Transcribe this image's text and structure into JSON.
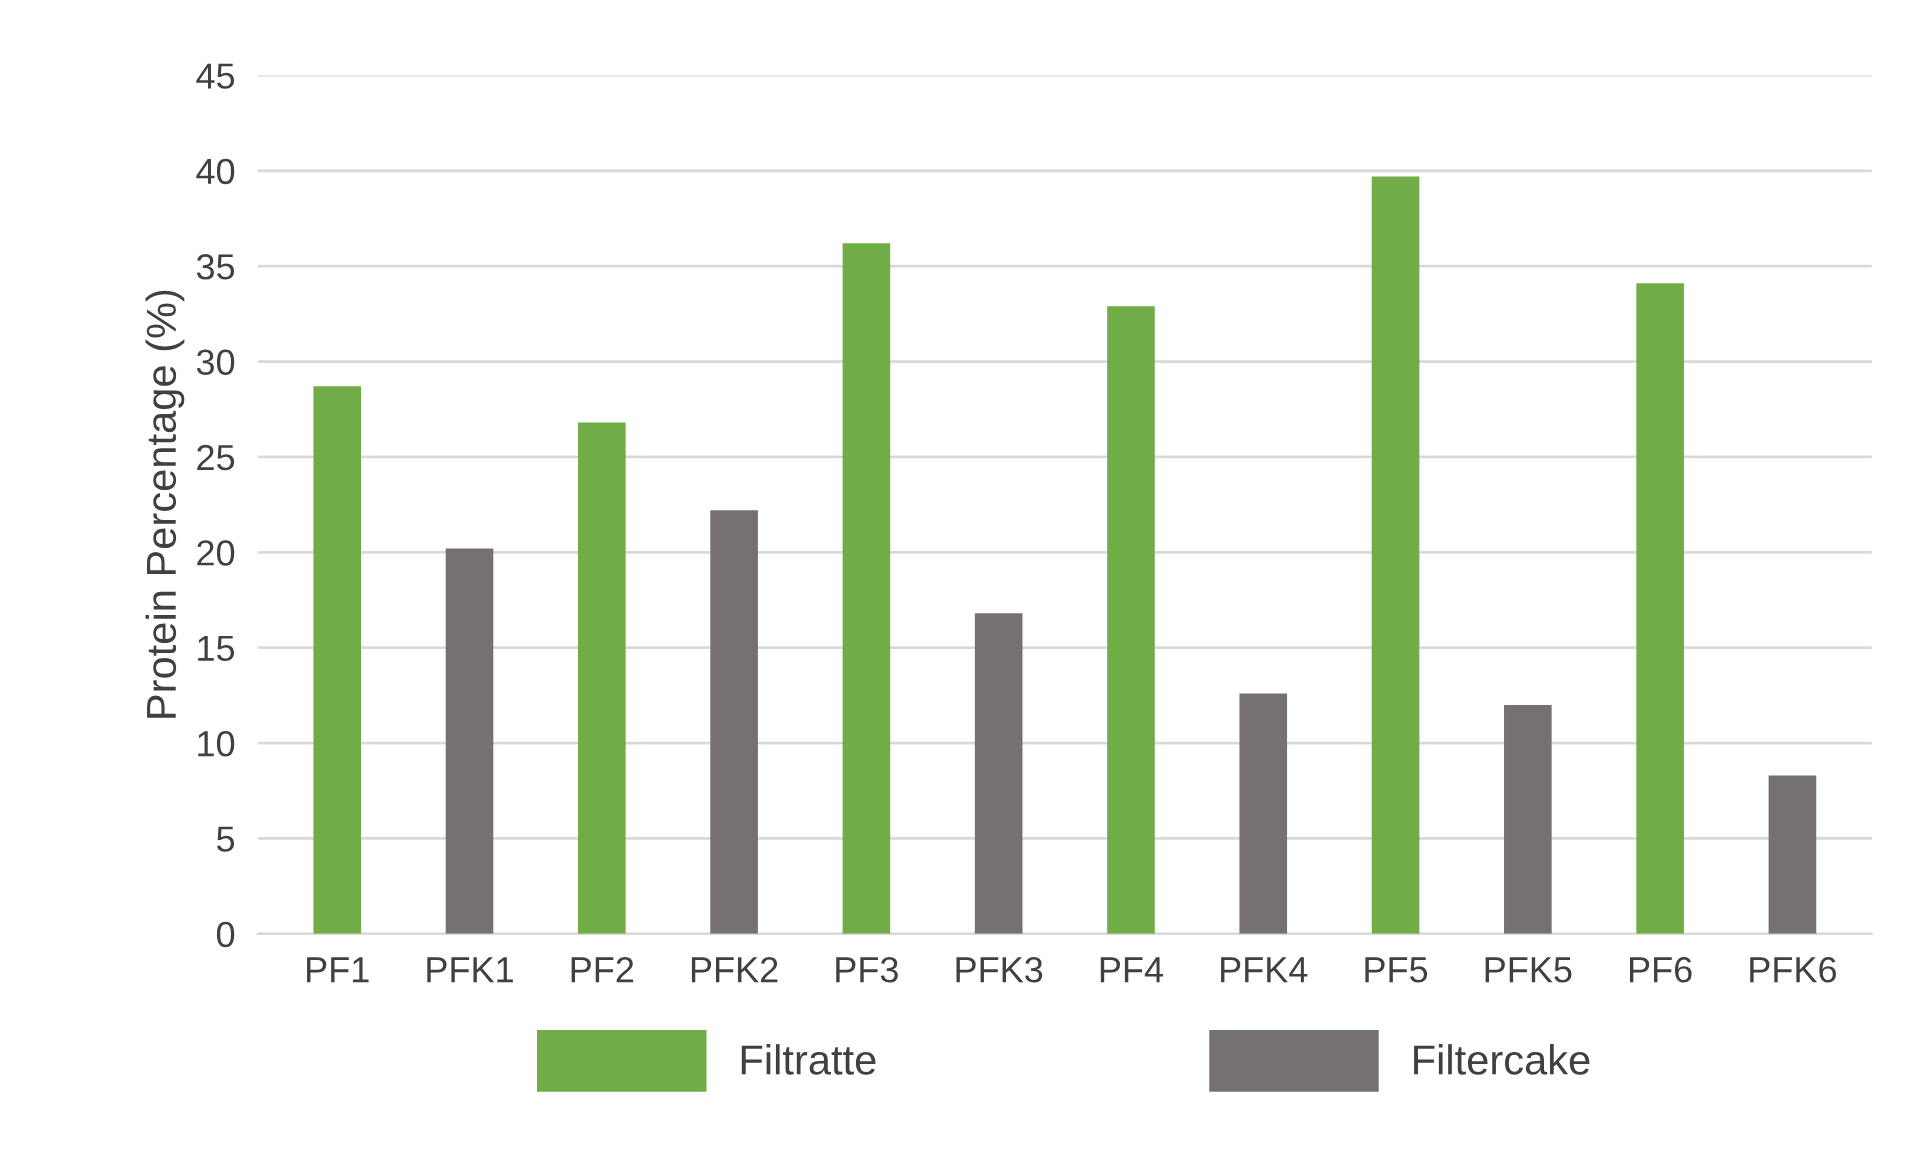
{
  "chart_data": {
    "type": "bar",
    "ylabel": "Protein Percentage (%)",
    "categories": [
      "PF1",
      "PFK1",
      "PF2",
      "PFK2",
      "PF3",
      "PFK3",
      "PF4",
      "PFK4",
      "PF5",
      "PFK5",
      "PF6",
      "PFK6"
    ],
    "stacked": true,
    "series": [
      {
        "name": "Filtratte",
        "color": "#70ad47",
        "values": [
          28.7,
          null,
          26.8,
          null,
          36.2,
          null,
          32.9,
          null,
          39.7,
          null,
          34.1,
          null
        ]
      },
      {
        "name": "Filtercake",
        "color": "#767171",
        "values": [
          null,
          20.2,
          null,
          22.2,
          null,
          16.8,
          null,
          12.6,
          null,
          12.0,
          null,
          8.3
        ]
      }
    ],
    "ylim": [
      0,
      45
    ],
    "yticks": [
      0,
      5,
      10,
      15,
      20,
      25,
      30,
      35,
      40,
      45
    ],
    "grid": "y",
    "legend": "bottom"
  }
}
